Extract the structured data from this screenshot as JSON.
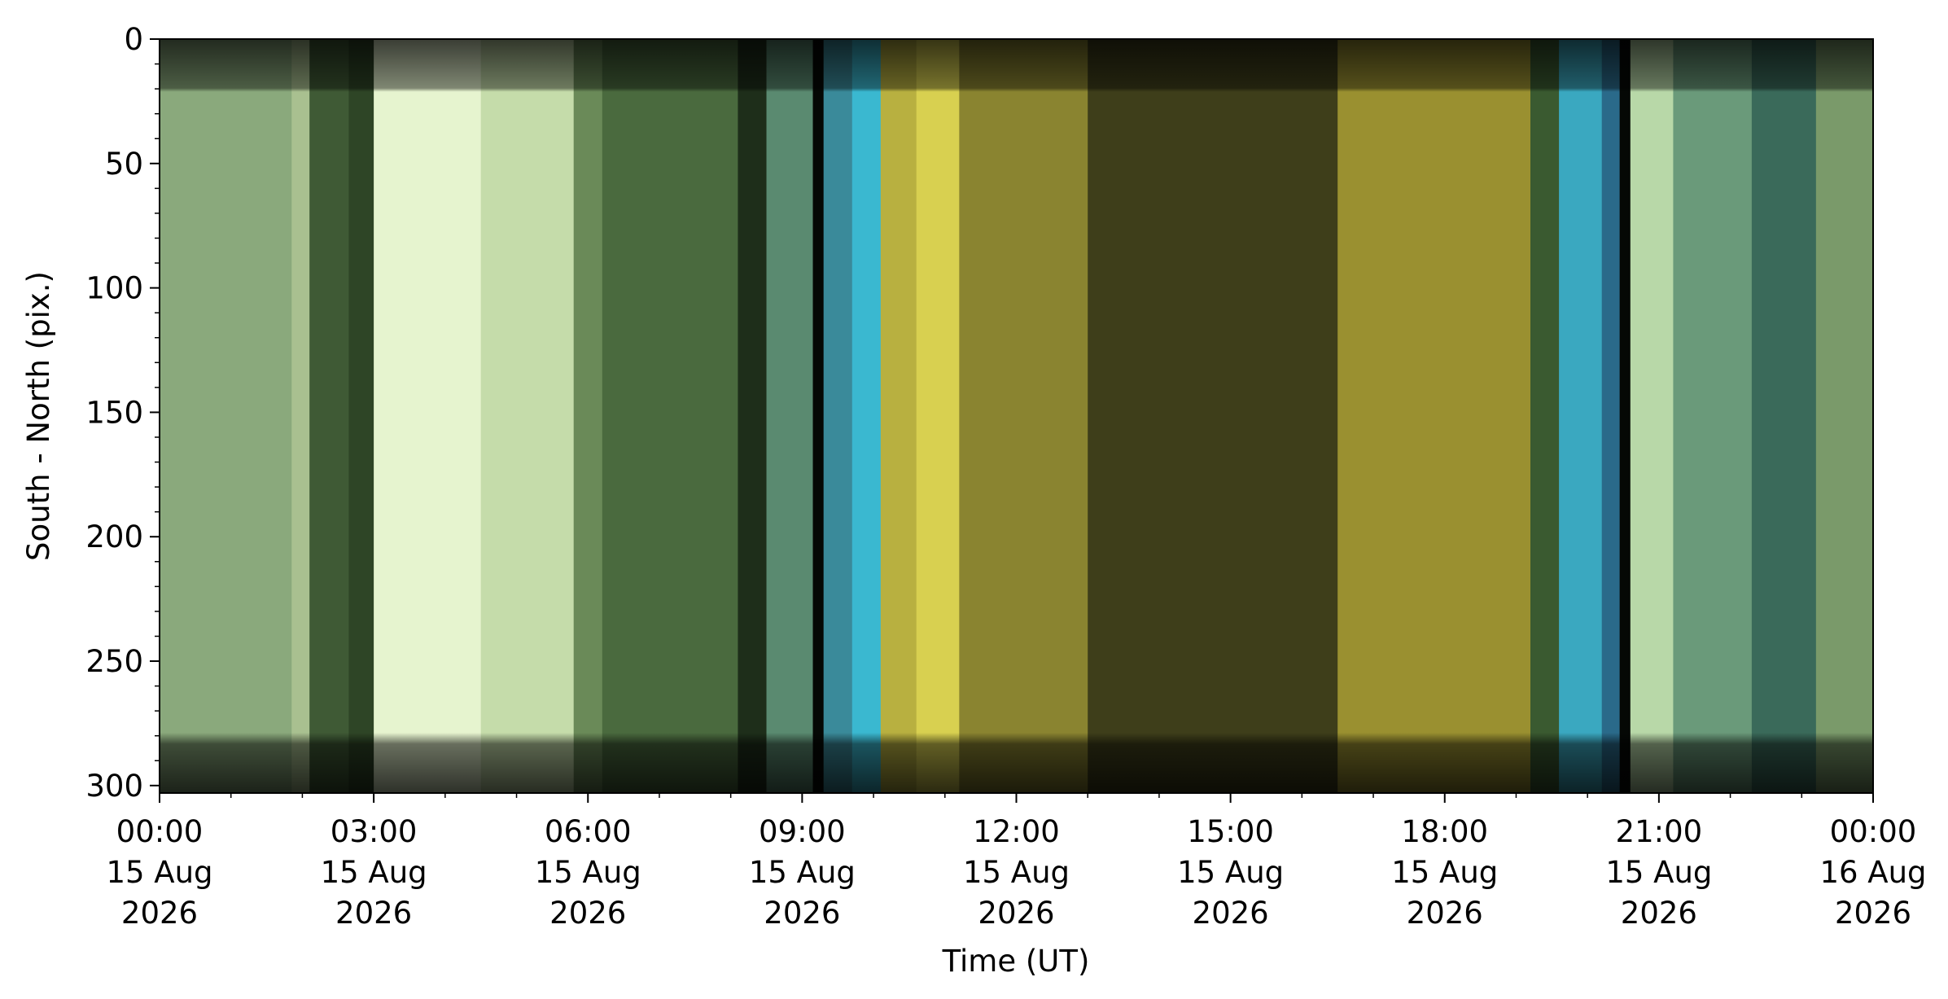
{
  "chart_data": {
    "type": "keogram",
    "xlabel": "Time (UT)",
    "ylabel": "South - North (pix.)",
    "xlim": [
      "2026-08-15T00:00",
      "2026-08-16T00:00"
    ],
    "xticks": [
      {
        "value": "2026-08-15T00:00",
        "label": [
          "00:00",
          "15 Aug",
          "2026"
        ]
      },
      {
        "value": "2026-08-15T03:00",
        "label": [
          "03:00",
          "15 Aug",
          "2026"
        ]
      },
      {
        "value": "2026-08-15T06:00",
        "label": [
          "06:00",
          "15 Aug",
          "2026"
        ]
      },
      {
        "value": "2026-08-15T09:00",
        "label": [
          "09:00",
          "15 Aug",
          "2026"
        ]
      },
      {
        "value": "2026-08-15T12:00",
        "label": [
          "12:00",
          "15 Aug",
          "2026"
        ]
      },
      {
        "value": "2026-08-15T15:00",
        "label": [
          "15:00",
          "15 Aug",
          "2026"
        ]
      },
      {
        "value": "2026-08-15T18:00",
        "label": [
          "18:00",
          "15 Aug",
          "2026"
        ]
      },
      {
        "value": "2026-08-15T21:00",
        "label": [
          "21:00",
          "15 Aug",
          "2026"
        ]
      },
      {
        "value": "2026-08-16T00:00",
        "label": [
          "00:00",
          "16 Aug",
          "2026"
        ]
      }
    ],
    "xminorticks": [
      "2026-08-15T01:00",
      "2026-08-15T02:00",
      "2026-08-15T04:00",
      "2026-08-15T05:00",
      "2026-08-15T07:00",
      "2026-08-15T08:00",
      "2026-08-15T10:00",
      "2026-08-15T11:00",
      "2026-08-15T13:00",
      "2026-08-15T14:00",
      "2026-08-15T16:00",
      "2026-08-15T17:00",
      "2026-08-15T19:00",
      "2026-08-15T20:00",
      "2026-08-15T22:00",
      "2026-08-15T23:00"
    ],
    "ylim": [
      303,
      0
    ],
    "yticks": [
      0,
      50,
      100,
      150,
      200,
      250,
      300
    ],
    "yminorticks": [
      10,
      20,
      30,
      40,
      60,
      70,
      80,
      90,
      110,
      120,
      130,
      140,
      160,
      170,
      180,
      190,
      210,
      220,
      230,
      240,
      260,
      270,
      280,
      290
    ],
    "bands": [
      {
        "start": "2026-08-15T00:00",
        "end": "2026-08-15T01:51",
        "color": "#8aa97c"
      },
      {
        "start": "2026-08-15T01:51",
        "end": "2026-08-15T02:06",
        "color": "#a9c090"
      },
      {
        "start": "2026-08-15T02:06",
        "end": "2026-08-15T02:39",
        "color": "#3f5a35"
      },
      {
        "start": "2026-08-15T02:39",
        "end": "2026-08-15T03:00",
        "color": "#2e4526"
      },
      {
        "start": "2026-08-15T03:00",
        "end": "2026-08-15T04:30",
        "color": "#e6f4cf"
      },
      {
        "start": "2026-08-15T04:30",
        "end": "2026-08-15T05:48",
        "color": "#c5dcaa"
      },
      {
        "start": "2026-08-15T05:48",
        "end": "2026-08-15T06:12",
        "color": "#6a8a58"
      },
      {
        "start": "2026-08-15T06:12",
        "end": "2026-08-15T08:06",
        "color": "#4a6a3e"
      },
      {
        "start": "2026-08-15T08:06",
        "end": "2026-08-15T08:30",
        "color": "#1e2e1a"
      },
      {
        "start": "2026-08-15T08:30",
        "end": "2026-08-15T09:09",
        "color": "#5a8a70"
      },
      {
        "start": "2026-08-15T09:09",
        "end": "2026-08-15T09:18",
        "color": "#050805"
      },
      {
        "start": "2026-08-15T09:18",
        "end": "2026-08-15T09:42",
        "color": "#3a8a9a"
      },
      {
        "start": "2026-08-15T09:42",
        "end": "2026-08-15T10:06",
        "color": "#3ab8d0"
      },
      {
        "start": "2026-08-15T10:06",
        "end": "2026-08-15T10:36",
        "color": "#b8b040"
      },
      {
        "start": "2026-08-15T10:36",
        "end": "2026-08-15T11:12",
        "color": "#d8d050"
      },
      {
        "start": "2026-08-15T11:12",
        "end": "2026-08-15T13:00",
        "color": "#8a8430"
      },
      {
        "start": "2026-08-15T13:00",
        "end": "2026-08-15T16:30",
        "color": "#3e3e1a"
      },
      {
        "start": "2026-08-15T16:30",
        "end": "2026-08-15T19:12",
        "color": "#9a9030"
      },
      {
        "start": "2026-08-15T19:12",
        "end": "2026-08-15T19:36",
        "color": "#3a5a30"
      },
      {
        "start": "2026-08-15T19:36",
        "end": "2026-08-15T20:12",
        "color": "#3aa8c0"
      },
      {
        "start": "2026-08-15T20:12",
        "end": "2026-08-15T20:27",
        "color": "#2a6a8a"
      },
      {
        "start": "2026-08-15T20:27",
        "end": "2026-08-15T20:36",
        "color": "#050805"
      },
      {
        "start": "2026-08-15T20:36",
        "end": "2026-08-15T21:12",
        "color": "#b8d8a8"
      },
      {
        "start": "2026-08-15T21:12",
        "end": "2026-08-15T22:18",
        "color": "#6a9a7a"
      },
      {
        "start": "2026-08-15T22:18",
        "end": "2026-08-15T23:12",
        "color": "#3a6a5a"
      },
      {
        "start": "2026-08-15T23:12",
        "end": "2026-08-16T00:00",
        "color": "#7a9a6a"
      }
    ]
  }
}
